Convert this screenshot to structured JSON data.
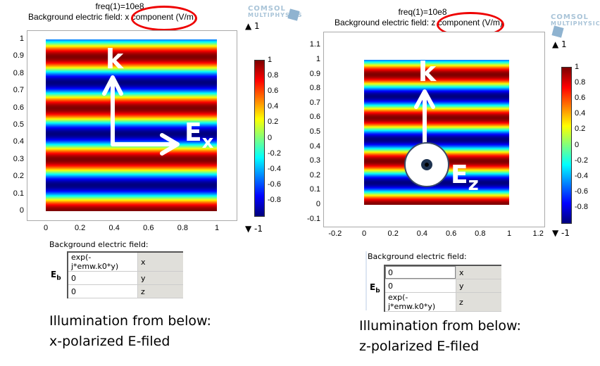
{
  "colormap": "jet",
  "accent_colors": {
    "highlight_ellipse": "#e00000",
    "overlay_arrows": "#ffffff"
  },
  "left": {
    "title_line1": "freq(1)=10e8",
    "title_line2_prefix": "Background electric field:",
    "title_component": "x component",
    "title_unit": "(V/m)",
    "logo": "COMSOL MULTIPHYSICS",
    "x_ticks": [
      "0",
      "0.2",
      "0.4",
      "0.6",
      "0.8",
      "1"
    ],
    "y_ticks": [
      "0",
      "0.1",
      "0.2",
      "0.3",
      "0.4",
      "0.5",
      "0.6",
      "0.7",
      "0.8",
      "0.9",
      "1"
    ],
    "colorbar_ticks": [
      "1",
      "0.8",
      "0.6",
      "0.4",
      "0.2",
      "0",
      "-0.2",
      "-0.4",
      "-0.6",
      "-0.8"
    ],
    "max_label": "▲ 1",
    "min_label": "▼ -1",
    "overlay_k": "k",
    "overlay_E": "E",
    "overlay_E_sub": "x",
    "settings_label": "Background electric field:",
    "eb_label": "E",
    "eb_sub": "b",
    "rows": [
      {
        "value": "exp(-j*emw.k0*y)",
        "component": "x"
      },
      {
        "value": "0",
        "component": "y"
      },
      {
        "value": "0",
        "component": "z"
      }
    ],
    "caption_line1": "Illumination from below:",
    "caption_line2": "x-polarized E-filed"
  },
  "right": {
    "title_line1": "freq(1)=10e8",
    "title_line2_prefix": "Background electric field:",
    "title_component": "z component",
    "title_unit": "(V/m)",
    "logo": "COMSOL MULTIPHYSICS",
    "x_ticks": [
      "-0.2",
      "0",
      "0.2",
      "0.4",
      "0.6",
      "0.8",
      "1",
      "1.2"
    ],
    "y_ticks": [
      "-0.1",
      "0",
      "0.1",
      "0.2",
      "0.3",
      "0.4",
      "0.5",
      "0.6",
      "0.7",
      "0.8",
      "0.9",
      "1",
      "1.1"
    ],
    "colorbar_ticks": [
      "1",
      "0.8",
      "0.6",
      "0.4",
      "0.2",
      "0",
      "-0.2",
      "-0.4",
      "-0.6",
      "-0.8"
    ],
    "max_label": "▲ 1",
    "min_label": "▼ -1",
    "overlay_k": "k",
    "overlay_E": "E",
    "overlay_E_sub": "z",
    "settings_label": "Background electric field:",
    "eb_label": "E",
    "eb_sub": "b",
    "rows": [
      {
        "value": "0",
        "component": "x"
      },
      {
        "value": "0",
        "component": "y"
      },
      {
        "value": "exp(-j*emw.k0*y)",
        "component": "z"
      }
    ],
    "caption_line1": "Illumination from below:",
    "caption_line2": "z-polarized E-filed"
  }
}
